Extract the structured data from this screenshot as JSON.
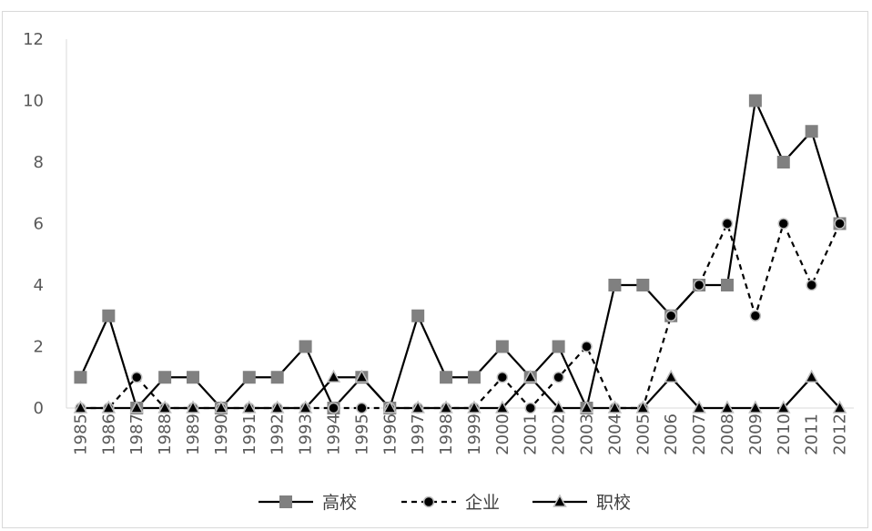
{
  "chart_data": {
    "type": "line",
    "title": "",
    "xlabel": "",
    "ylabel": "",
    "ylim": [
      0,
      12
    ],
    "yticks": [
      0,
      2,
      4,
      6,
      8,
      10,
      12
    ],
    "grid": false,
    "legend_position": "bottom",
    "categories": [
      "1985",
      "1986",
      "1987",
      "1988",
      "1989",
      "1990",
      "1991",
      "1992",
      "1993",
      "1994",
      "1995",
      "1996",
      "1997",
      "1998",
      "1999",
      "2000",
      "2001",
      "2002",
      "2003",
      "2004",
      "2005",
      "2006",
      "2007",
      "2008",
      "2009",
      "2010",
      "2011",
      "2012"
    ],
    "series": [
      {
        "name": "高校",
        "marker": "square",
        "line": "solid",
        "values": [
          1,
          3,
          0,
          1,
          1,
          0,
          1,
          1,
          2,
          0,
          1,
          0,
          3,
          1,
          1,
          2,
          1,
          2,
          0,
          4,
          4,
          3,
          4,
          4,
          10,
          8,
          9,
          6
        ]
      },
      {
        "name": "企业",
        "marker": "circle",
        "line": "dashed",
        "values": [
          0,
          0,
          1,
          0,
          0,
          0,
          0,
          0,
          0,
          0,
          0,
          0,
          0,
          0,
          0,
          1,
          0,
          1,
          2,
          0,
          0,
          3,
          4,
          6,
          3,
          6,
          4,
          6
        ]
      },
      {
        "name": "职校",
        "marker": "triangle",
        "line": "solid",
        "values": [
          0,
          0,
          0,
          0,
          0,
          0,
          0,
          0,
          0,
          1,
          1,
          0,
          0,
          0,
          0,
          0,
          1,
          0,
          0,
          0,
          0,
          1,
          0,
          0,
          0,
          0,
          1,
          0
        ]
      }
    ],
    "colors": {
      "line": "#000000",
      "square_fill": "#808080",
      "circle_fill": "#000000",
      "triangle_fill": "#000000",
      "marker_outline": "#bfbfbf",
      "axis": "#d9d9d9",
      "tick_text": "#595959"
    }
  }
}
